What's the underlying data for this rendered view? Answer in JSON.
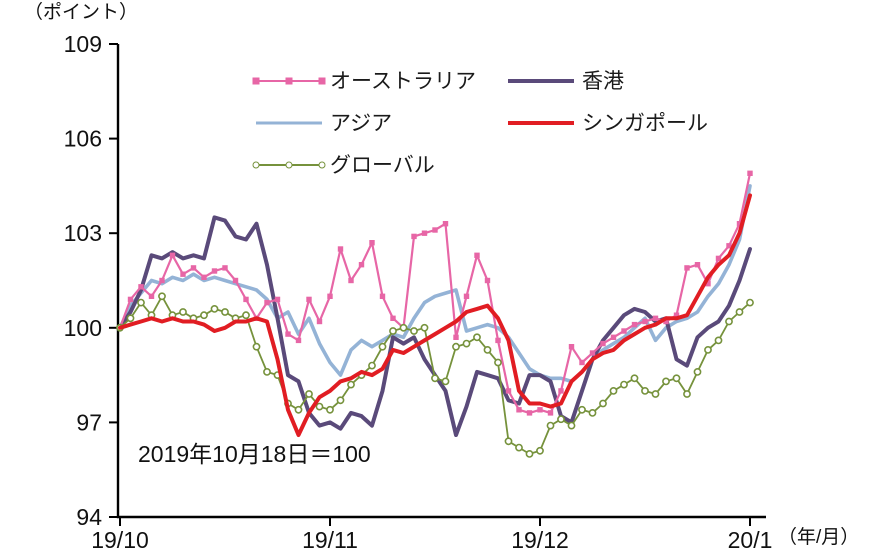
{
  "labels": {
    "y_axis_unit": "（ポイント）",
    "x_axis_unit": "（年/月）",
    "annotation": "2019年10月18日＝100"
  },
  "chart_data": {
    "type": "line",
    "title": "",
    "ylim": [
      94,
      109
    ],
    "yticks": [
      94,
      97,
      100,
      103,
      106,
      109
    ],
    "xticklabels": [
      "19/10",
      "19/11",
      "19/12",
      "20/1"
    ],
    "grid": false,
    "legend_position": "top-center-inside",
    "series": [
      {
        "name": "オーストラリア",
        "color": "#e766a6",
        "marker": "square",
        "width": 2.2,
        "values": [
          100.0,
          100.9,
          101.3,
          101.0,
          101.5,
          102.3,
          101.7,
          101.9,
          101.6,
          101.8,
          101.9,
          101.5,
          100.9,
          100.3,
          100.8,
          100.9,
          99.8,
          99.6,
          100.9,
          100.2,
          101.0,
          102.5,
          101.5,
          102.0,
          102.7,
          101.0,
          100.3,
          100.0,
          102.9,
          103.0,
          103.1,
          103.3,
          99.7,
          101.0,
          102.3,
          101.5,
          99.6,
          98.0,
          97.4,
          97.3,
          97.4,
          97.3,
          98.0,
          99.4,
          98.9,
          99.2,
          99.5,
          99.7,
          99.9,
          100.1,
          100.2,
          100.3,
          100.2,
          100.4,
          101.9,
          102.0,
          101.4,
          102.2,
          102.6,
          103.3,
          104.9
        ]
      },
      {
        "name": "香港",
        "color": "#5a4a7a",
        "marker": "none",
        "width": 4,
        "values": [
          100.0,
          100.5,
          101.2,
          102.3,
          102.2,
          102.4,
          102.2,
          102.3,
          102.2,
          103.5,
          103.4,
          102.9,
          102.8,
          103.3,
          102.0,
          100.3,
          98.5,
          98.3,
          97.3,
          96.9,
          97.0,
          96.8,
          97.3,
          97.2,
          96.9,
          98.0,
          99.7,
          99.5,
          99.7,
          99.0,
          98.5,
          98.0,
          96.6,
          97.5,
          98.6,
          98.5,
          98.4,
          97.7,
          97.6,
          98.5,
          98.5,
          98.3,
          97.2,
          97.0,
          98.0,
          99.0,
          99.6,
          100.0,
          100.4,
          100.6,
          100.5,
          100.2,
          100.3,
          99.0,
          98.8,
          99.7,
          100.0,
          100.2,
          100.7,
          101.5,
          102.5
        ]
      },
      {
        "name": "アジア",
        "color": "#94b3d6",
        "marker": "none",
        "width": 3.6,
        "values": [
          100.0,
          100.7,
          101.1,
          101.5,
          101.4,
          101.6,
          101.5,
          101.7,
          101.5,
          101.6,
          101.5,
          101.4,
          101.3,
          101.2,
          100.9,
          100.3,
          100.5,
          99.8,
          100.3,
          99.5,
          98.9,
          98.5,
          99.3,
          99.6,
          99.4,
          99.6,
          99.8,
          99.7,
          100.3,
          100.8,
          101.0,
          101.1,
          101.2,
          99.9,
          100.0,
          100.1,
          100.0,
          99.7,
          99.2,
          98.7,
          98.5,
          98.4,
          98.4,
          98.3,
          98.6,
          99.0,
          99.3,
          99.5,
          99.7,
          100.0,
          100.3,
          99.6,
          100.0,
          100.2,
          100.3,
          100.5,
          101.0,
          101.4,
          102.0,
          102.8,
          104.5
        ]
      },
      {
        "name": "シンガポール",
        "color": "#e11d23",
        "marker": "none",
        "width": 4,
        "values": [
          100.0,
          100.1,
          100.2,
          100.3,
          100.2,
          100.3,
          100.2,
          100.2,
          100.1,
          99.9,
          100.0,
          100.2,
          100.2,
          100.3,
          100.2,
          99.0,
          97.4,
          96.6,
          97.3,
          97.8,
          98.0,
          98.3,
          98.4,
          98.6,
          98.5,
          98.7,
          99.3,
          99.2,
          99.4,
          99.6,
          99.8,
          100.0,
          100.2,
          100.5,
          100.6,
          100.7,
          100.3,
          99.6,
          98.0,
          97.6,
          97.6,
          97.5,
          97.6,
          98.3,
          98.6,
          99.0,
          99.2,
          99.3,
          99.6,
          99.8,
          100.0,
          100.1,
          100.3,
          100.3,
          100.4,
          101.0,
          101.6,
          102.0,
          102.3,
          103.0,
          104.2
        ]
      },
      {
        "name": "グローバル",
        "color": "#76923c",
        "marker": "circle",
        "width": 1.8,
        "values": [
          100.0,
          100.3,
          100.8,
          100.4,
          101.0,
          100.4,
          100.5,
          100.3,
          100.4,
          100.6,
          100.5,
          100.3,
          100.4,
          99.4,
          98.6,
          98.5,
          97.6,
          97.4,
          97.9,
          97.5,
          97.4,
          97.7,
          98.2,
          98.5,
          98.8,
          99.4,
          99.9,
          100.0,
          99.9,
          100.0,
          98.4,
          98.3,
          99.4,
          99.5,
          99.7,
          99.3,
          98.9,
          96.4,
          96.2,
          96.0,
          96.1,
          96.9,
          97.1,
          96.9,
          97.4,
          97.3,
          97.6,
          98.0,
          98.2,
          98.4,
          98.0,
          97.9,
          98.3,
          98.4,
          97.9,
          98.6,
          99.3,
          99.6,
          100.2,
          100.5,
          100.8
        ]
      }
    ]
  }
}
